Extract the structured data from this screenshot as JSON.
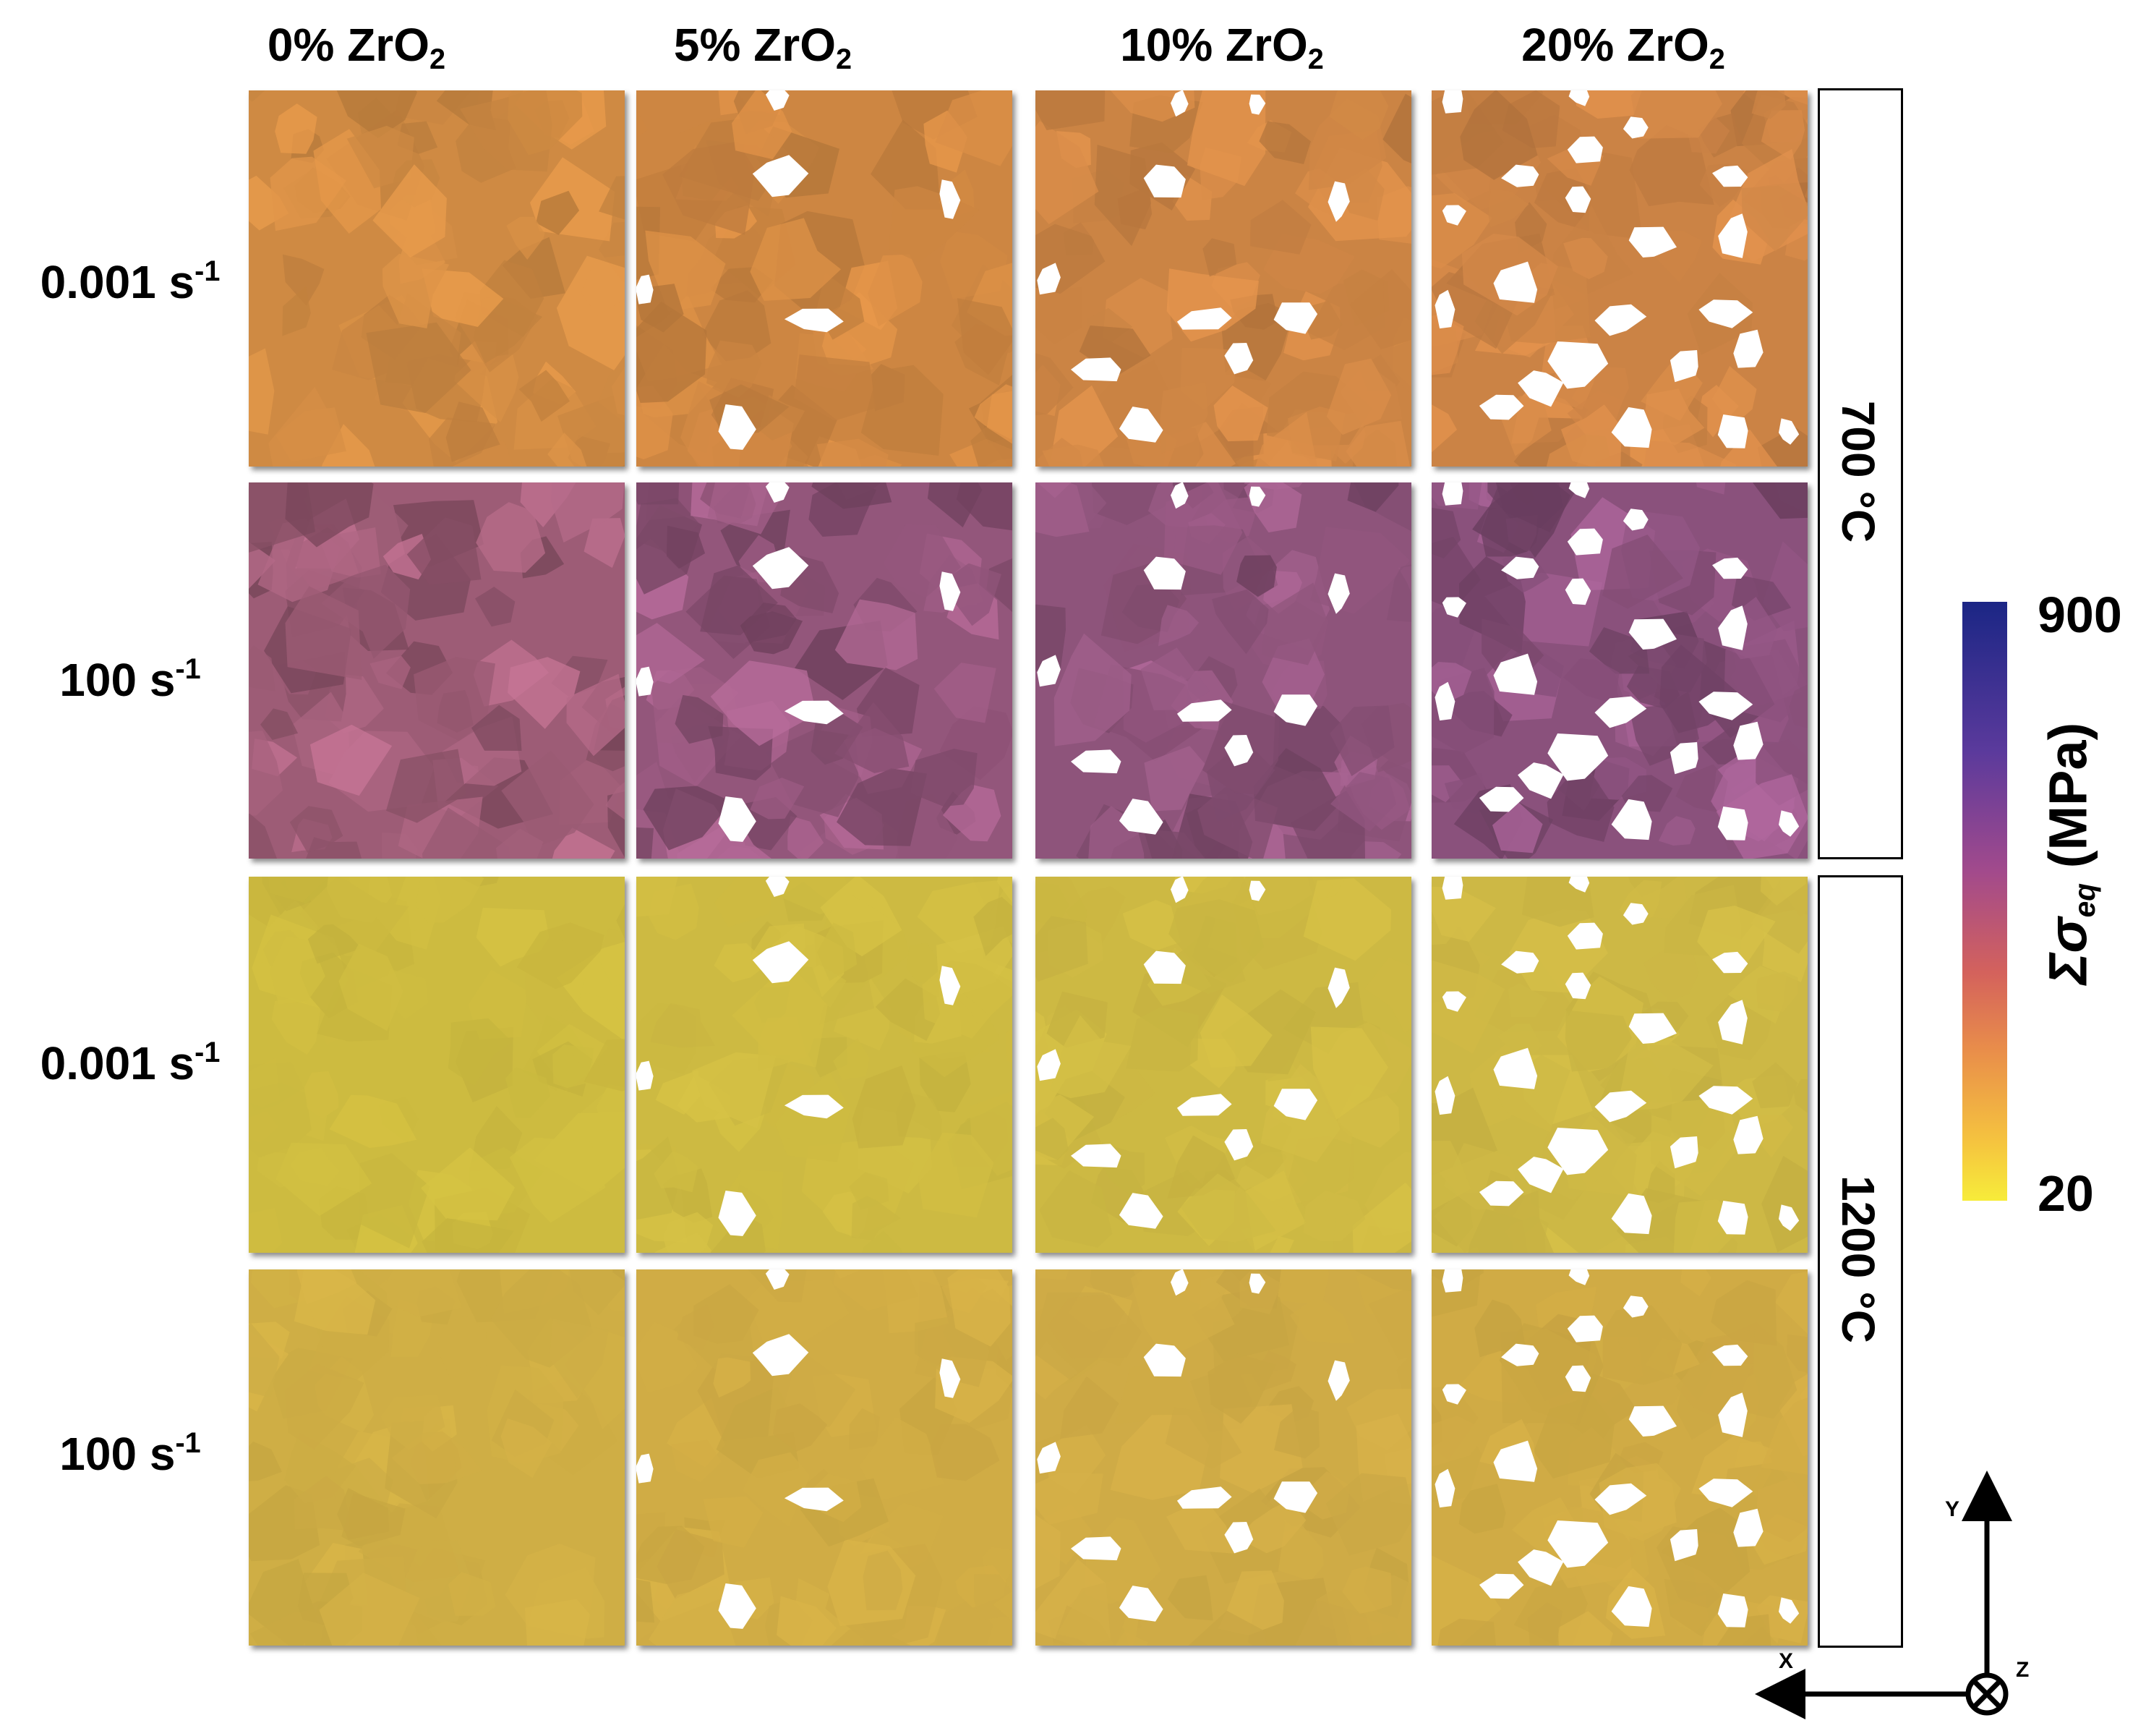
{
  "columns": [
    {
      "prefix": "0% ZrO",
      "sub": "2"
    },
    {
      "prefix": "5% ZrO",
      "sub": "2"
    },
    {
      "prefix": "10% ZrO",
      "sub": "2"
    },
    {
      "prefix": "20% ZrO",
      "sub": "2"
    }
  ],
  "rows": [
    {
      "base": "0.001 s",
      "sup": "-1"
    },
    {
      "base": "100 s",
      "sup": "-1"
    },
    {
      "base": "0.001 s",
      "sup": "-1"
    },
    {
      "base": "100 s",
      "sup": "-1"
    }
  ],
  "temperatures": [
    "700 °C",
    "1200 °C"
  ],
  "colorbar": {
    "max_label": "900",
    "min_label": "20",
    "title_symbol": "Σσ",
    "title_subscript": "eq",
    "title_unit": "(MPa)",
    "colors": [
      "#1b2685",
      "#5b3a9c",
      "#a24a8c",
      "#d4625c",
      "#e98e4a",
      "#f5c33f",
      "#f7ec3a"
    ]
  },
  "axes": {
    "x": "X",
    "y": "Y",
    "z": "Z"
  },
  "panel_colors": [
    [
      "#cf8a43",
      "#cd8642",
      "#cb8444",
      "#cb8345"
    ],
    [
      "#9d5c76",
      "#93567b",
      "#8e547b",
      "#8a517c"
    ],
    [
      "#cdbb40",
      "#cdba42",
      "#cdb943",
      "#cdb845"
    ],
    [
      "#cfae45",
      "#d0ac45",
      "#cfab46",
      "#d0ab45"
    ]
  ]
}
